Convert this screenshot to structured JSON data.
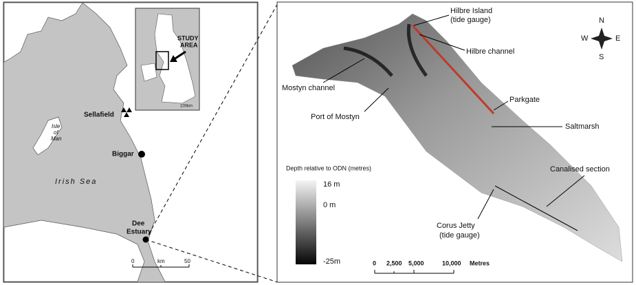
{
  "left_map": {
    "inset": {
      "label": [
        "STUDY",
        "AREA"
      ],
      "scale": "100km"
    },
    "places": {
      "sellafield": "Sellafield",
      "isle_of_man": [
        "Isle",
        "of",
        "Man"
      ],
      "biggar": "Biggar",
      "irish_sea": "Irish Sea",
      "dee_estuary": [
        "Dee",
        "Estuary"
      ]
    },
    "scale_bar": {
      "ticks": [
        "0",
        "50"
      ],
      "unit": "km"
    }
  },
  "right_map": {
    "labels": {
      "hilbre_island": [
        "Hilbre Island",
        "(tide gauge)"
      ],
      "hilbre_channel": "Hilbre channel",
      "mostyn_channel": "Mostyn channel",
      "port_of_mostyn": "Port of Mostyn",
      "parkgate": "Parkgate",
      "saltmarsh": "Saltmarsh",
      "canalised_section": "Canalised section",
      "corus_jetty": [
        "Corus Jetty",
        "(tide gauge)"
      ]
    },
    "legend": {
      "title": "Depth relative to ODN (metres)",
      "labels": [
        "16 m",
        "0 m",
        "-25m"
      ]
    },
    "compass": {
      "n": "N",
      "s": "S",
      "e": "E",
      "w": "W"
    },
    "scale_bar": {
      "ticks": [
        "0",
        "2,500",
        "5,000",
        "10,000"
      ],
      "unit": "Metres"
    }
  }
}
